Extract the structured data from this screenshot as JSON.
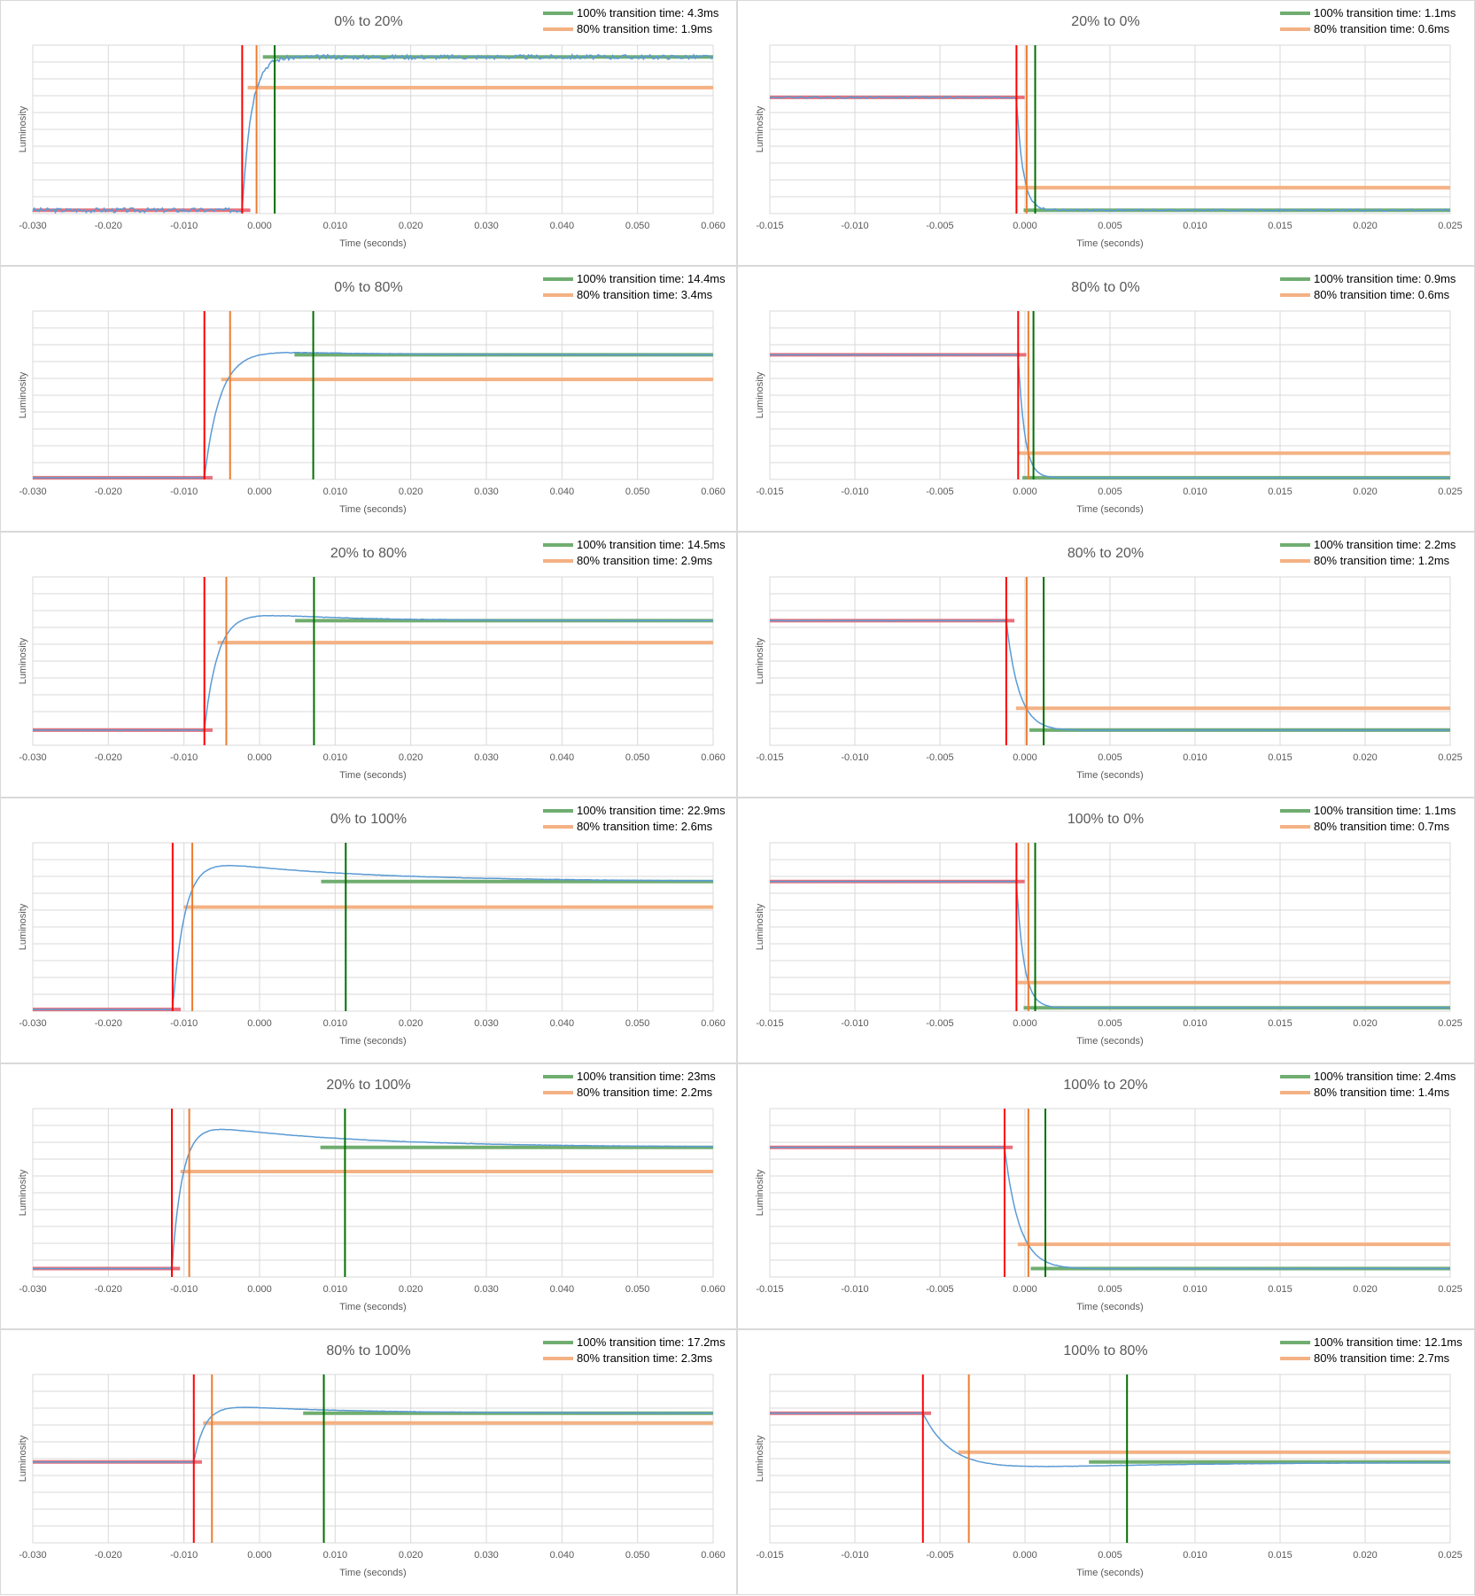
{
  "common": {
    "xlabel": "Time (seconds)",
    "ylabel": "Luminosity",
    "legend_100": "100% transition time:",
    "legend_80": "80% transition time:",
    "colors": {
      "trace": "#5b9bd5",
      "start": "#ff0000",
      "start_level": "#e8707a",
      "t80": "#ed7d31",
      "t80_level": "#f4b183",
      "t100": "#007000",
      "t100_level": "#70ad70",
      "grid": "#d9d9d9"
    }
  },
  "chart_data": [
    {
      "type": "line",
      "title": "0% to 20%",
      "legend_100_value": "4.3ms",
      "legend_80_value": "1.9ms",
      "xlim": [
        -0.03,
        0.06
      ],
      "xticks": [
        "-0.030",
        "-0.020",
        "-0.010",
        "0.000",
        "0.010",
        "0.020",
        "0.030",
        "0.040",
        "0.050",
        "0.060"
      ],
      "ylim": [
        0,
        10
      ],
      "direction": "rise",
      "start_level": 0.2,
      "end_level": 9.3,
      "t_start": -0.0023,
      "t_80": -0.0004,
      "t_100": 0.002,
      "overshoot": 0,
      "noise": 0.45
    },
    {
      "type": "line",
      "title": "20% to 0%",
      "legend_100_value": "1.1ms",
      "legend_80_value": "0.6ms",
      "xlim": [
        -0.015,
        0.025
      ],
      "xticks": [
        "-0.015",
        "-0.010",
        "-0.005",
        "0.000",
        "0.005",
        "0.010",
        "0.015",
        "0.020",
        "0.025"
      ],
      "ylim": [
        0,
        10
      ],
      "direction": "fall",
      "start_level": 6.9,
      "end_level": 0.2,
      "t_start": -0.0005,
      "t_80": 0.0001,
      "t_100": 0.0006,
      "overshoot": 0,
      "noise": 0.2
    },
    {
      "type": "line",
      "title": "0% to 80%",
      "legend_100_value": "14.4ms",
      "legend_80_value": "3.4ms",
      "xlim": [
        -0.03,
        0.06
      ],
      "xticks": [
        "-0.030",
        "-0.020",
        "-0.010",
        "0.000",
        "0.010",
        "0.020",
        "0.030",
        "0.040",
        "0.050",
        "0.060"
      ],
      "ylim": [
        0,
        10
      ],
      "direction": "rise",
      "start_level": 0.1,
      "end_level": 7.4,
      "t_start": -0.0073,
      "t_80": -0.0039,
      "t_100": 0.0071,
      "overshoot": 0.4,
      "noise": 0.05
    },
    {
      "type": "line",
      "title": "80% to 0%",
      "legend_100_value": "0.9ms",
      "legend_80_value": "0.6ms",
      "xlim": [
        -0.015,
        0.025
      ],
      "xticks": [
        "-0.015",
        "-0.010",
        "-0.005",
        "0.000",
        "0.005",
        "0.010",
        "0.015",
        "0.020",
        "0.025"
      ],
      "ylim": [
        0,
        10
      ],
      "direction": "fall",
      "start_level": 7.4,
      "end_level": 0.1,
      "t_start": -0.0004,
      "t_80": 0.0002,
      "t_100": 0.0005,
      "overshoot": 0,
      "noise": 0.03
    },
    {
      "type": "line",
      "title": "20% to 80%",
      "legend_100_value": "14.5ms",
      "legend_80_value": "2.9ms",
      "xlim": [
        -0.03,
        0.06
      ],
      "xticks": [
        "-0.030",
        "-0.020",
        "-0.010",
        "0.000",
        "0.010",
        "0.020",
        "0.030",
        "0.040",
        "0.050",
        "0.060"
      ],
      "ylim": [
        0,
        10
      ],
      "direction": "rise",
      "start_level": 0.9,
      "end_level": 7.4,
      "t_start": -0.0073,
      "t_80": -0.0044,
      "t_100": 0.0072,
      "overshoot": 0.7,
      "noise": 0.05
    },
    {
      "type": "line",
      "title": "80% to 20%",
      "legend_100_value": "2.2ms",
      "legend_80_value": "1.2ms",
      "xlim": [
        -0.015,
        0.025
      ],
      "xticks": [
        "-0.015",
        "-0.010",
        "-0.005",
        "0.000",
        "0.005",
        "0.010",
        "0.015",
        "0.020",
        "0.025"
      ],
      "ylim": [
        0,
        10
      ],
      "direction": "fall",
      "start_level": 7.4,
      "end_level": 0.9,
      "t_start": -0.0011,
      "t_80": 0.0001,
      "t_100": 0.0011,
      "overshoot": -0.1,
      "noise": 0.03
    },
    {
      "type": "line",
      "title": "0% to 100%",
      "legend_100_value": "22.9ms",
      "legend_80_value": "2.6ms",
      "xlim": [
        -0.03,
        0.06
      ],
      "xticks": [
        "-0.030",
        "-0.020",
        "-0.010",
        "0.000",
        "0.010",
        "0.020",
        "0.030",
        "0.040",
        "0.050",
        "0.060"
      ],
      "ylim": [
        0,
        10
      ],
      "direction": "rise",
      "start_level": 0.1,
      "end_level": 7.7,
      "t_start": -0.0115,
      "t_80": -0.0089,
      "t_100": 0.0114,
      "overshoot": 1.5,
      "noise": 0.03
    },
    {
      "type": "line",
      "title": "100% to 0%",
      "legend_100_value": "1.1ms",
      "legend_80_value": "0.7ms",
      "xlim": [
        -0.015,
        0.025
      ],
      "xticks": [
        "-0.015",
        "-0.010",
        "-0.005",
        "0.000",
        "0.005",
        "0.010",
        "0.015",
        "0.020",
        "0.025"
      ],
      "ylim": [
        0,
        10
      ],
      "direction": "fall",
      "start_level": 7.7,
      "end_level": 0.2,
      "t_start": -0.0005,
      "t_80": 0.0002,
      "t_100": 0.0006,
      "overshoot": 0,
      "noise": 0.03
    },
    {
      "type": "line",
      "title": "20% to 100%",
      "legend_100_value": "23ms",
      "legend_80_value": "2.2ms",
      "xlim": [
        -0.03,
        0.06
      ],
      "xticks": [
        "-0.030",
        "-0.020",
        "-0.010",
        "0.000",
        "0.010",
        "0.020",
        "0.030",
        "0.040",
        "0.050",
        "0.060"
      ],
      "ylim": [
        0,
        10
      ],
      "direction": "rise",
      "start_level": 0.5,
      "end_level": 7.7,
      "t_start": -0.0116,
      "t_80": -0.0093,
      "t_100": 0.0113,
      "overshoot": 1.6,
      "noise": 0.03
    },
    {
      "type": "line",
      "title": "100% to 20%",
      "legend_100_value": "2.4ms",
      "legend_80_value": "1.4ms",
      "xlim": [
        -0.015,
        0.025
      ],
      "xticks": [
        "-0.015",
        "-0.010",
        "-0.005",
        "0.000",
        "0.005",
        "0.010",
        "0.015",
        "0.020",
        "0.025"
      ],
      "ylim": [
        0,
        10
      ],
      "direction": "fall",
      "start_level": 7.7,
      "end_level": 0.5,
      "t_start": -0.0012,
      "t_80": 0.0002,
      "t_100": 0.0012,
      "overshoot": -0.1,
      "noise": 0.03
    },
    {
      "type": "line",
      "title": "80% to 100%",
      "legend_100_value": "17.2ms",
      "legend_80_value": "2.3ms",
      "xlim": [
        -0.03,
        0.06
      ],
      "xticks": [
        "-0.030",
        "-0.020",
        "-0.010",
        "0.000",
        "0.010",
        "0.020",
        "0.030",
        "0.040",
        "0.050",
        "0.060"
      ],
      "ylim": [
        0,
        10
      ],
      "direction": "rise",
      "start_level": 4.8,
      "end_level": 7.7,
      "t_start": -0.0087,
      "t_80": -0.0063,
      "t_100": 0.0085,
      "overshoot": 0.6,
      "noise": 0.03
    },
    {
      "type": "line",
      "title": "100% to 80%",
      "legend_100_value": "12.1ms",
      "legend_80_value": "2.7ms",
      "xlim": [
        -0.015,
        0.025
      ],
      "xticks": [
        "-0.015",
        "-0.010",
        "-0.005",
        "0.000",
        "0.005",
        "0.010",
        "0.015",
        "0.020",
        "0.025"
      ],
      "ylim": [
        0,
        10
      ],
      "direction": "fall",
      "start_level": 7.7,
      "end_level": 4.8,
      "t_start": -0.006,
      "t_80": -0.0033,
      "t_100": 0.006,
      "overshoot": -0.6,
      "noise": 0.03
    }
  ]
}
